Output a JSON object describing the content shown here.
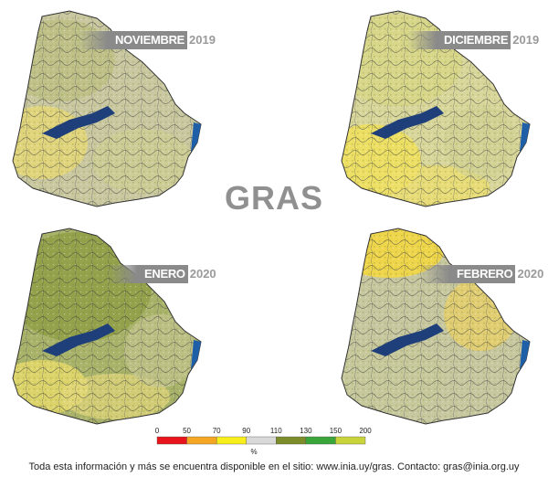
{
  "title": "GRAS",
  "maps": [
    {
      "month": "NOVIEMBRE",
      "year": "2019"
    },
    {
      "month": "DICIEMBRE",
      "year": "2019"
    },
    {
      "month": "ENERO",
      "year": "2020"
    },
    {
      "month": "FEBRERO",
      "year": "2020"
    }
  ],
  "legend": {
    "ticks": [
      "0",
      "50",
      "70",
      "90",
      "110",
      "130",
      "150",
      "200"
    ],
    "unit": "%",
    "colors": [
      "#e8141b",
      "#f5a623",
      "#f7ee1c",
      "#d9d9d9",
      "#7d8c2a",
      "#3aa53a",
      "#c9d43b"
    ]
  },
  "footer": "Toda esta información y más se encuentra disponible en el sitio: www.inia.uy/gras. Contacto: gras@inia.org.uy"
}
